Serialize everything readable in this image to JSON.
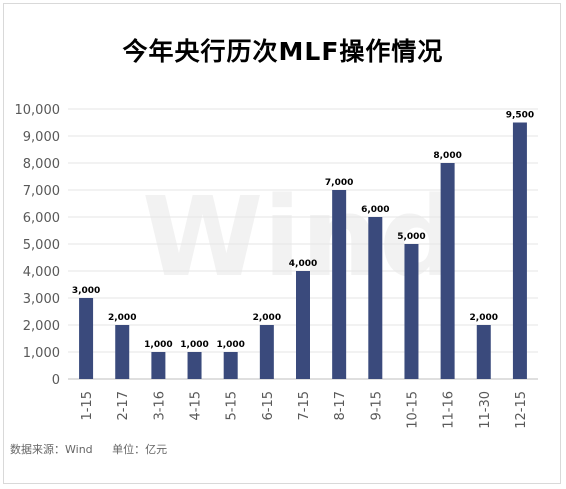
{
  "chart_data": {
    "type": "bar",
    "title": "今年央行历次MLF操作情况",
    "categories": [
      "1-15",
      "2-17",
      "3-16",
      "4-15",
      "5-15",
      "6-15",
      "7-15",
      "8-17",
      "9-15",
      "10-15",
      "11-16",
      "11-30",
      "12-15"
    ],
    "values": [
      3000,
      2000,
      1000,
      1000,
      1000,
      2000,
      4000,
      7000,
      6000,
      5000,
      8000,
      2000,
      9500
    ],
    "data_labels": [
      "3,000",
      "2,000",
      "1,000",
      "1,000",
      "1,000",
      "2,000",
      "4,000",
      "7,000",
      "6,000",
      "5,000",
      "8,000",
      "2,000",
      "9,500"
    ],
    "y_ticks": [
      "0",
      "1,000",
      "2,000",
      "3,000",
      "4,000",
      "5,000",
      "6,000",
      "7,000",
      "8,000",
      "9,000",
      "10,000"
    ],
    "ylim": [
      0,
      10000
    ],
    "grid": true,
    "bar_color": "#3a4a7c",
    "watermark": "Wind"
  },
  "footer": {
    "source": "数据来源：Wind",
    "unit": "单位：亿元"
  }
}
